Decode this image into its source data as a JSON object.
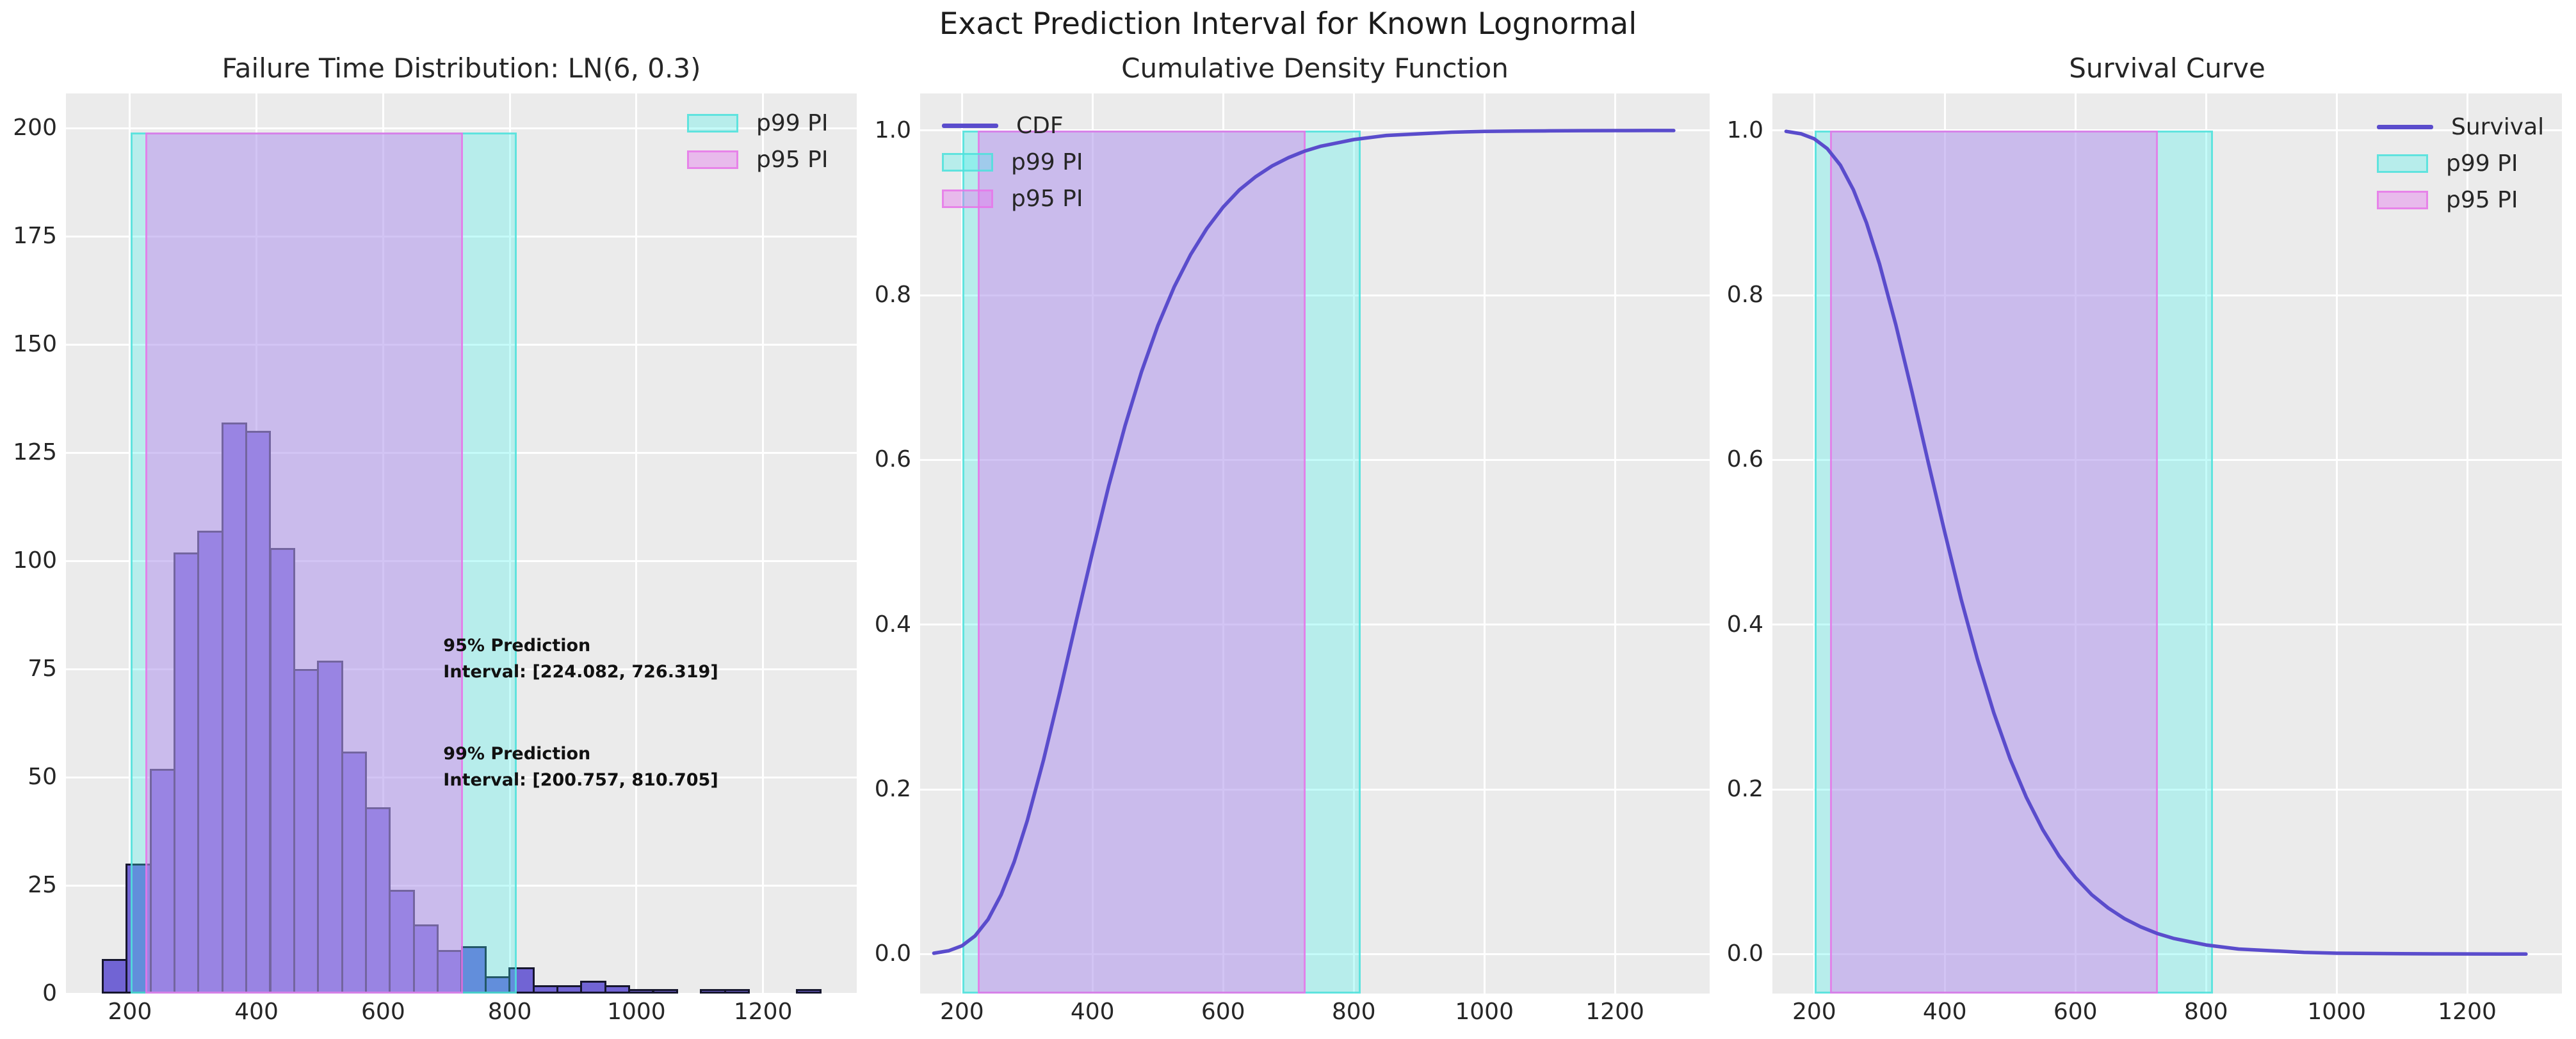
{
  "figure": {
    "title": "Exact Prediction Interval for Known Lognormal"
  },
  "colors": {
    "axes_bg": "#ebebeb",
    "grid": "#ffffff",
    "line": "#5a4ccc",
    "bar_fill": "#7164d4",
    "bar_edge": "#16162e",
    "p99_fill": "rgba(64,242,235,0.30)",
    "p99_edge": "rgba(80,225,220,0.85)",
    "p95_fill": "rgba(229,120,238,0.42)",
    "p95_edge": "rgba(230,118,232,0.80)",
    "text": "#262626"
  },
  "chart_data": [
    {
      "type": "histogram",
      "title": "Failure Time Distribution: LN(6, 0.3)",
      "xlabel": "",
      "ylabel": "",
      "bins": {
        "start": 157,
        "width": 37.8
      },
      "counts": [
        8,
        30,
        52,
        102,
        107,
        132,
        130,
        103,
        75,
        77,
        56,
        43,
        24,
        16,
        10,
        11,
        4,
        6,
        2,
        2,
        3,
        2,
        1,
        1,
        0,
        1,
        1,
        0,
        0,
        1
      ],
      "xlim": [
        99,
        1348
      ],
      "ylim": [
        0,
        208
      ],
      "xticks": [
        200,
        400,
        600,
        800,
        1000,
        1200
      ],
      "xtick_labels": [
        "200",
        "400",
        "600",
        "800",
        "1000",
        "1200"
      ],
      "yticks": [
        0,
        25,
        50,
        75,
        100,
        125,
        150,
        175,
        200
      ],
      "ytick_labels": [
        "0",
        "25",
        "50",
        "75",
        "100",
        "125",
        "150",
        "175",
        "200"
      ],
      "grid": true,
      "bands": {
        "p99": [
          200.757,
          810.705
        ],
        "p95": [
          224.082,
          726.319
        ],
        "y_top": 199
      },
      "legend": {
        "loc": "upper-right",
        "items": [
          {
            "label": "p99 PI",
            "type": "patch",
            "color_key": "p99"
          },
          {
            "label": "p95 PI",
            "type": "patch",
            "color_key": "p95"
          }
        ]
      },
      "annotations": [
        {
          "lines": [
            "95% Prediction",
            "Interval: [224.082, 726.319]"
          ],
          "x": 695,
          "y_top": 83.5
        },
        {
          "lines": [
            "99% Prediction",
            "Interval: [200.757, 810.705]"
          ],
          "x": 695,
          "y_top": 58.5
        }
      ]
    },
    {
      "type": "line",
      "title": "Cumulative Density Function",
      "xlabel": "",
      "ylabel": "",
      "series": [
        {
          "name": "CDF",
          "x": [
            157,
            180,
            200,
            220,
            240,
            260,
            280,
            300,
            325,
            350,
            375,
            400,
            425,
            450,
            475,
            500,
            525,
            550,
            575,
            600,
            625,
            650,
            675,
            700,
            725,
            750,
            775,
            800,
            850,
            900,
            950,
            1000,
            1050,
            1100,
            1150,
            1200,
            1250,
            1290
          ],
          "y": [
            0.001,
            0.004,
            0.01,
            0.022,
            0.042,
            0.072,
            0.112,
            0.162,
            0.236,
            0.318,
            0.404,
            0.488,
            0.569,
            0.642,
            0.707,
            0.763,
            0.81,
            0.849,
            0.881,
            0.907,
            0.928,
            0.944,
            0.957,
            0.967,
            0.975,
            0.981,
            0.985,
            0.989,
            0.994,
            0.996,
            0.998,
            0.999,
            0.9993,
            0.9996,
            0.9998,
            0.9999,
            1.0,
            1.0
          ]
        }
      ],
      "xlim": [
        136,
        1345
      ],
      "ylim": [
        -0.048,
        1.045
      ],
      "xticks": [
        200,
        400,
        600,
        800,
        1000,
        1200
      ],
      "xtick_labels": [
        "200",
        "400",
        "600",
        "800",
        "1000",
        "1200"
      ],
      "yticks": [
        0,
        0.2,
        0.4,
        0.6,
        0.8,
        1.0
      ],
      "ytick_labels": [
        "0.0",
        "0.2",
        "0.4",
        "0.6",
        "0.8",
        "1.0"
      ],
      "grid": true,
      "bands": {
        "p99": [
          200.757,
          810.705
        ],
        "p95": [
          224.082,
          726.319
        ],
        "y_top": 1.0
      },
      "legend": {
        "loc": "upper-left",
        "items": [
          {
            "label": "CDF",
            "type": "line",
            "color_key": "line"
          },
          {
            "label": "p99 PI",
            "type": "patch",
            "color_key": "p99"
          },
          {
            "label": "p95 PI",
            "type": "patch",
            "color_key": "p95"
          }
        ]
      },
      "annotations": []
    },
    {
      "type": "line",
      "title": "Survival Curve",
      "xlabel": "",
      "ylabel": "",
      "series": [
        {
          "name": "Survival",
          "x": [
            157,
            180,
            200,
            220,
            240,
            260,
            280,
            300,
            325,
            350,
            375,
            400,
            425,
            450,
            475,
            500,
            525,
            550,
            575,
            600,
            625,
            650,
            675,
            700,
            725,
            750,
            775,
            800,
            850,
            900,
            950,
            1000,
            1050,
            1100,
            1150,
            1200,
            1250,
            1290
          ],
          "y": [
            0.999,
            0.996,
            0.99,
            0.978,
            0.958,
            0.928,
            0.888,
            0.838,
            0.764,
            0.682,
            0.596,
            0.512,
            0.431,
            0.358,
            0.293,
            0.237,
            0.19,
            0.151,
            0.119,
            0.093,
            0.072,
            0.056,
            0.043,
            0.033,
            0.025,
            0.019,
            0.015,
            0.011,
            0.006,
            0.004,
            0.002,
            0.001,
            0.0007,
            0.0004,
            0.0002,
            0.0001,
            0.0,
            0.0
          ]
        }
      ],
      "xlim": [
        136,
        1345
      ],
      "ylim": [
        -0.048,
        1.045
      ],
      "xticks": [
        200,
        400,
        600,
        800,
        1000,
        1200
      ],
      "xtick_labels": [
        "200",
        "400",
        "600",
        "800",
        "1000",
        "1200"
      ],
      "yticks": [
        0,
        0.2,
        0.4,
        0.6,
        0.8,
        1.0
      ],
      "ytick_labels": [
        "0.0",
        "0.2",
        "0.4",
        "0.6",
        "0.8",
        "1.0"
      ],
      "grid": true,
      "bands": {
        "p99": [
          200.757,
          810.705
        ],
        "p95": [
          224.082,
          726.319
        ],
        "y_top": 1.0
      },
      "legend": {
        "loc": "upper-right",
        "items": [
          {
            "label": "Survival",
            "type": "line",
            "color_key": "line"
          },
          {
            "label": "p99 PI",
            "type": "patch",
            "color_key": "p99"
          },
          {
            "label": "p95 PI",
            "type": "patch",
            "color_key": "p95"
          }
        ]
      },
      "annotations": []
    }
  ]
}
